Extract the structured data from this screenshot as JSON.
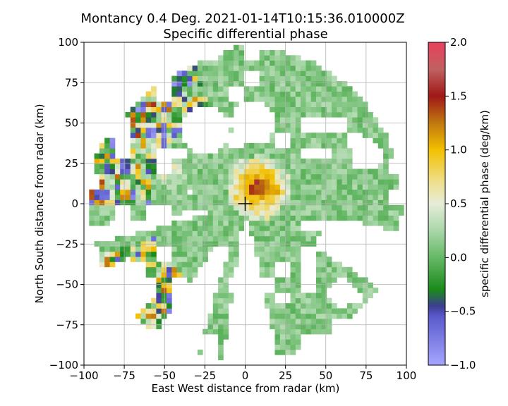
{
  "chart_data": {
    "type": "heatmap",
    "title": "Montancy 0.4 Deg. 2021-01-14T10:15:36.010000Z",
    "subtitle": "Specific differential phase",
    "xlabel": "East West distance from radar (km)",
    "ylabel": "North South distance from radar (km)",
    "xlim": [
      -100,
      100
    ],
    "ylim": [
      -100,
      100
    ],
    "x_ticks": [
      -100,
      -75,
      -50,
      -25,
      0,
      25,
      50,
      75,
      100
    ],
    "y_ticks": [
      -100,
      -75,
      -50,
      -25,
      0,
      25,
      50,
      75,
      100
    ],
    "x_tick_labels": [
      "−100",
      "−75",
      "−50",
      "−25",
      "0",
      "25",
      "50",
      "75",
      "100"
    ],
    "y_tick_labels": [
      "−100",
      "−75",
      "−50",
      "−25",
      "0",
      "25",
      "50",
      "75",
      "100"
    ],
    "grid": true,
    "radar_marker": {
      "x": 0,
      "y": 0
    },
    "max_range_km": 97,
    "colorbar": {
      "label": "specific differential phase (deg/km)",
      "range": [
        -1.0,
        2.0
      ],
      "ticks": [
        -1.0,
        -0.5,
        0.0,
        0.5,
        1.0,
        1.5,
        2.0
      ],
      "tick_labels": [
        "−1.0",
        "−0.5",
        "0.0",
        "0.5",
        "1.0",
        "1.5",
        "2.0"
      ],
      "stops": [
        {
          "value": -1.0,
          "color": "#a6a6ff"
        },
        {
          "value": -0.55,
          "color": "#5a5acc"
        },
        {
          "value": -0.45,
          "color": "#3d3d8f"
        },
        {
          "value": -0.3,
          "color": "#1a8a1a"
        },
        {
          "value": 0.0,
          "color": "#66b866"
        },
        {
          "value": 0.25,
          "color": "#a9d7a9"
        },
        {
          "value": 0.5,
          "color": "#e7ecd9"
        },
        {
          "value": 0.7,
          "color": "#efdf8f"
        },
        {
          "value": 1.0,
          "color": "#f2c000"
        },
        {
          "value": 1.25,
          "color": "#c07810"
        },
        {
          "value": 1.5,
          "color": "#a01818"
        },
        {
          "value": 1.75,
          "color": "#c06060"
        },
        {
          "value": 2.0,
          "color": "#e8405e"
        }
      ]
    }
  }
}
